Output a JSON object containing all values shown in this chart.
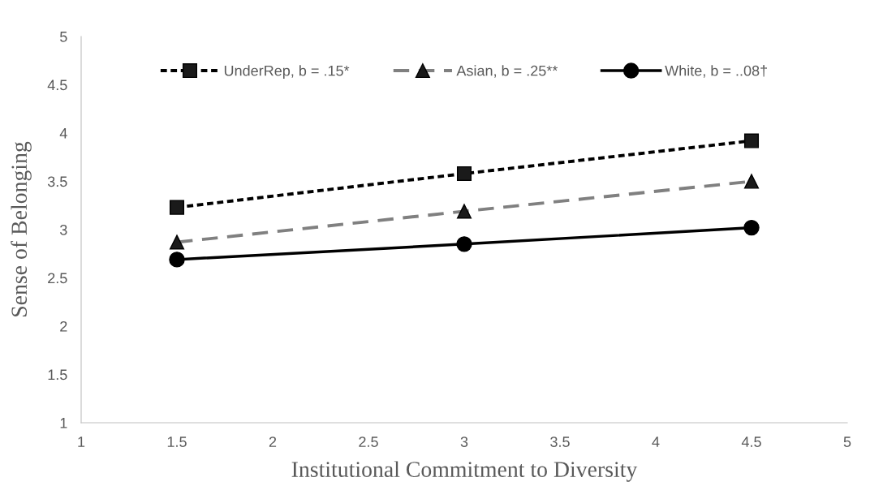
{
  "chart_data": {
    "type": "line",
    "xlabel": "Institutional Commitment to Diversity",
    "ylabel": "Sense of Belonging",
    "x": [
      1.5,
      3,
      4.5
    ],
    "series": [
      {
        "name": "UnderRep, b = .15*",
        "color": "#000000",
        "values": [
          3.23,
          3.58,
          3.92
        ],
        "marker": "square",
        "line_style": "dotted"
      },
      {
        "name": "Asian, b = .25**",
        "color": "#808080",
        "values": [
          2.87,
          3.19,
          3.5
        ],
        "marker": "triangle",
        "line_style": "dashed"
      },
      {
        "name": "White, b = ..08†",
        "color": "#000000",
        "values": [
          2.69,
          2.85,
          3.02
        ],
        "marker": "circle",
        "line_style": "solid"
      }
    ],
    "xlim": [
      1,
      5
    ],
    "xticks": [
      1,
      1.5,
      2,
      2.5,
      3,
      3.5,
      4,
      4.5,
      5
    ],
    "ylim": [
      1,
      5
    ],
    "yticks": [
      1,
      1.5,
      2,
      2.5,
      3,
      3.5,
      4,
      4.5,
      5
    ],
    "grid": false,
    "legend": "top"
  }
}
